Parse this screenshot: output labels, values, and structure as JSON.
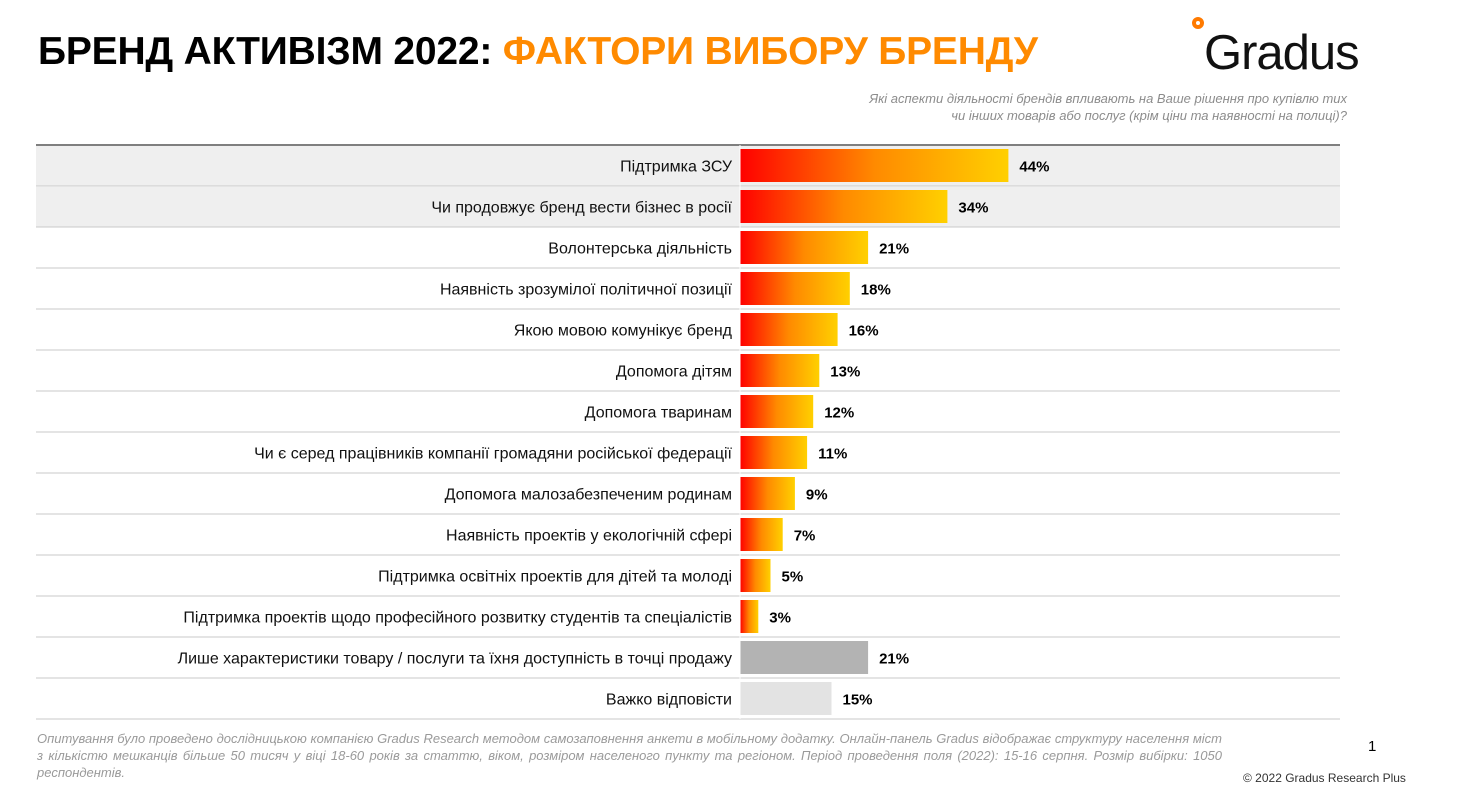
{
  "header": {
    "title_part1": "БРЕНД АКТИВІЗМ 2022:",
    "title_part2": "ФАКТОРИ ВИБОРУ БРЕНДУ",
    "logo_text": "Gradus",
    "question_line1": "Які аспекти діяльності брендів впливають на Ваше рішення про купівлю тих",
    "question_line2": "чи інших товарів або послуг (крім ціни та наявності на полиці)?"
  },
  "colors": {
    "accent_orange": "#ff8a00",
    "gradient_start": "#ff0000",
    "gradient_mid": "#ff8a00",
    "gradient_end": "#ffd000",
    "bar_gray_dark": "#b3b3b3",
    "bar_gray_light": "#e3e3e3",
    "highlight_row": "#efefef"
  },
  "chart_data": {
    "type": "bar",
    "orientation": "horizontal",
    "unit": "%",
    "xlim": [
      0,
      50
    ],
    "categories": [
      "Підтримка ЗСУ",
      "Чи продовжує бренд вести бізнес в росії",
      "Волонтерська діяльність",
      "Наявність зрозумілої політичної позиції",
      "Якою мовою комунікує бренд",
      "Допомога дітям",
      "Допомога тваринам",
      "Чи є серед працівників компанії громадяни російської федерації",
      "Допомога малозабезпеченим родинам",
      "Наявність проектів у екологічній сфері",
      "Підтримка освітніх проектів для дітей та молоді",
      "Підтримка проектів щодо професійного розвитку студентів та спеціалістів",
      "Лише характеристики товару / послуги та їхня доступність в точці продажу",
      "Важко відповісти"
    ],
    "values": [
      44,
      34,
      21,
      18,
      16,
      13,
      12,
      11,
      9,
      7,
      5,
      3,
      21,
      15
    ],
    "value_labels": [
      "44%",
      "34%",
      "21%",
      "18%",
      "16%",
      "13%",
      "12%",
      "11%",
      "9%",
      "7%",
      "5%",
      "3%",
      "21%",
      "15%"
    ],
    "bar_styles": [
      "gradient",
      "gradient",
      "gradient",
      "gradient",
      "gradient",
      "gradient",
      "gradient",
      "gradient",
      "gradient",
      "gradient",
      "gradient",
      "gradient",
      "gray-dark",
      "gray-light"
    ],
    "highlighted_rows": [
      0,
      1
    ]
  },
  "footer": {
    "note": "Опитування було проведено дослідницькою компанією Gradus Research методом самозаповнення анкети в мобільному додатку. Онлайн-панель Gradus відображає структуру населення міст з кількістю мешканців більше 50 тисяч у віці 18-60 років за статтю, віком, розміром населеного пункту та регіоном. Період проведення поля (2022): 15-16 серпня. Розмір вибірки: 1050 респондентів.",
    "page_number": "1",
    "copyright": "© 2022 Gradus Research Plus"
  }
}
